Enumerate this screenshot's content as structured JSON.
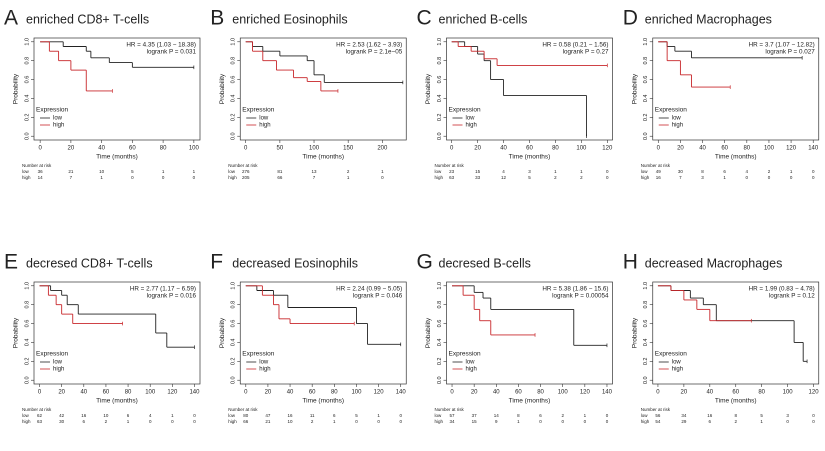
{
  "chart_data": [
    {
      "type": "line",
      "panel": "A",
      "title": "enriched CD8+ T-cells",
      "hr": "HR = 4.35 (1.03 − 18.38)",
      "logrank": "logrank P = 0.031",
      "xlabel": "Time (months)",
      "ylabel": "Probability",
      "legend_title": "Expression",
      "risk_title": "Number at risk",
      "xlim": [
        -4,
        104
      ],
      "xticks": [
        0,
        20,
        40,
        60,
        80,
        100
      ],
      "ylim": [
        -0.04,
        1.04
      ],
      "yticks": [
        {
          "value": 0,
          "label": "0.0"
        },
        {
          "value": 0.2,
          "label": "0.2"
        },
        {
          "value": 0.4,
          "label": "0.4"
        },
        {
          "value": 0.6,
          "label": "0.6"
        },
        {
          "value": 0.8,
          "label": "0.8"
        },
        {
          "value": 1,
          "label": "1.0"
        }
      ],
      "series": [
        {
          "name": "low",
          "color": "#222222",
          "x": [
            0,
            15,
            30,
            33,
            45,
            60,
            100
          ],
          "values": [
            1,
            0.95,
            0.9,
            0.83,
            0.78,
            0.73,
            0.73
          ],
          "at_risk": [
            36,
            21,
            10,
            5,
            1,
            1
          ]
        },
        {
          "name": "high",
          "color": "#c8272b",
          "x": [
            0,
            6,
            12,
            20,
            30,
            47
          ],
          "values": [
            1,
            0.9,
            0.8,
            0.7,
            0.48,
            0.48
          ],
          "at_risk": [
            14,
            7,
            1,
            0,
            0,
            0
          ]
        }
      ]
    },
    {
      "type": "line",
      "panel": "B",
      "title": "enriched Eosinophils",
      "hr": "HR = 2.53 (1.62 − 3.93)",
      "logrank": "logrank P = 2.1e−05",
      "xlabel": "Time (months)",
      "ylabel": "Probability",
      "legend_title": "Expression",
      "risk_title": "Number at risk",
      "xlim": [
        -8,
        235
      ],
      "xticks": [
        0,
        50,
        100,
        150,
        200
      ],
      "ylim": [
        -0.04,
        1.04
      ],
      "yticks": [
        {
          "value": 0,
          "label": "0.0"
        },
        {
          "value": 0.2,
          "label": "0.2"
        },
        {
          "value": 0.4,
          "label": "0.4"
        },
        {
          "value": 0.6,
          "label": "0.6"
        },
        {
          "value": 0.8,
          "label": "0.8"
        },
        {
          "value": 1,
          "label": "1.0"
        }
      ],
      "series": [
        {
          "name": "low",
          "color": "#222222",
          "x": [
            0,
            10,
            25,
            50,
            90,
            100,
            115,
            230
          ],
          "values": [
            1,
            0.95,
            0.9,
            0.85,
            0.8,
            0.65,
            0.57,
            0.57
          ],
          "at_risk": [
            276,
            81,
            13,
            2,
            1
          ]
        },
        {
          "name": "high",
          "color": "#c8272b",
          "x": [
            0,
            10,
            25,
            45,
            70,
            90,
            110,
            135
          ],
          "values": [
            1,
            0.9,
            0.8,
            0.7,
            0.62,
            0.58,
            0.48,
            0.48
          ],
          "at_risk": [
            205,
            66,
            7,
            1,
            0
          ]
        }
      ]
    },
    {
      "type": "line",
      "panel": "C",
      "title": "enriched B-cells",
      "hr": "HR = 0.58 (0.21 − 1.56)",
      "logrank": "logrank P = 0.27",
      "xlabel": "Time (months)",
      "ylabel": "Probability",
      "legend_title": "Expression",
      "risk_title": "Number at risk",
      "xlim": [
        -4,
        124
      ],
      "xticks": [
        0,
        20,
        40,
        60,
        80,
        100,
        120
      ],
      "ylim": [
        -0.04,
        1.04
      ],
      "yticks": [
        {
          "value": 0,
          "label": "0.0"
        },
        {
          "value": 0.2,
          "label": "0.2"
        },
        {
          "value": 0.4,
          "label": "0.4"
        },
        {
          "value": 0.6,
          "label": "0.6"
        },
        {
          "value": 0.8,
          "label": "0.8"
        },
        {
          "value": 1,
          "label": "1.0"
        }
      ],
      "series": [
        {
          "name": "low",
          "color": "#222222",
          "x": [
            0,
            10,
            20,
            25,
            30,
            40,
            104
          ],
          "values": [
            1,
            0.95,
            0.87,
            0.8,
            0.6,
            0.43,
            0
          ],
          "at_risk": [
            23,
            15,
            4,
            3,
            1,
            1,
            0
          ]
        },
        {
          "name": "high",
          "color": "#c8272b",
          "x": [
            0,
            5,
            15,
            25,
            35,
            120
          ],
          "values": [
            1,
            0.95,
            0.9,
            0.82,
            0.75,
            0.75
          ],
          "at_risk": [
            63,
            33,
            12,
            5,
            2,
            2,
            0
          ]
        }
      ]
    },
    {
      "type": "line",
      "panel": "D",
      "title": "enriched Macrophages",
      "hr": "HR = 3.7 (1.07 − 12.82)",
      "logrank": "logrank P = 0.027",
      "xlabel": "Time (months)",
      "ylabel": "Probability",
      "legend_title": "Expression",
      "risk_title": "Number at risk",
      "xlim": [
        -5,
        145
      ],
      "xticks": [
        0,
        20,
        40,
        60,
        80,
        100,
        120,
        140
      ],
      "ylim": [
        -0.04,
        1.04
      ],
      "yticks": [
        {
          "value": 0,
          "label": "0.0"
        },
        {
          "value": 0.2,
          "label": "0.2"
        },
        {
          "value": 0.4,
          "label": "0.4"
        },
        {
          "value": 0.6,
          "label": "0.6"
        },
        {
          "value": 0.8,
          "label": "0.8"
        },
        {
          "value": 1,
          "label": "1.0"
        }
      ],
      "series": [
        {
          "name": "low",
          "color": "#222222",
          "x": [
            0,
            8,
            15,
            30,
            130
          ],
          "values": [
            1,
            0.95,
            0.9,
            0.83,
            0.83
          ],
          "at_risk": [
            49,
            30,
            8,
            6,
            4,
            2,
            1,
            0
          ]
        },
        {
          "name": "high",
          "color": "#c8272b",
          "x": [
            0,
            8,
            20,
            30,
            65
          ],
          "values": [
            1,
            0.8,
            0.65,
            0.52,
            0.52
          ],
          "at_risk": [
            16,
            7,
            3,
            1,
            0,
            0,
            0,
            0
          ]
        }
      ]
    },
    {
      "type": "line",
      "panel": "E",
      "title": "decresed CD8+ T-cells",
      "hr": "HR = 2.77 (1.17 − 6.59)",
      "logrank": "logrank P = 0.016",
      "xlabel": "Time (months)",
      "ylabel": "Probability",
      "legend_title": "Expression",
      "risk_title": "Number at risk",
      "xlim": [
        -5,
        145
      ],
      "xticks": [
        0,
        20,
        40,
        60,
        80,
        100,
        120,
        140
      ],
      "ylim": [
        -0.04,
        1.04
      ],
      "yticks": [
        {
          "value": 0,
          "label": "0.0"
        },
        {
          "value": 0.2,
          "label": "0.2"
        },
        {
          "value": 0.4,
          "label": "0.4"
        },
        {
          "value": 0.6,
          "label": "0.6"
        },
        {
          "value": 0.8,
          "label": "0.8"
        },
        {
          "value": 1,
          "label": "1.0"
        }
      ],
      "series": [
        {
          "name": "low",
          "color": "#222222",
          "x": [
            0,
            10,
            20,
            25,
            35,
            105,
            115,
            140
          ],
          "values": [
            1,
            0.95,
            0.9,
            0.8,
            0.7,
            0.5,
            0.35,
            0.35
          ],
          "at_risk": [
            62,
            42,
            16,
            10,
            6,
            4,
            1,
            0
          ]
        },
        {
          "name": "high",
          "color": "#c8272b",
          "x": [
            0,
            8,
            15,
            20,
            30,
            75
          ],
          "values": [
            1,
            0.9,
            0.8,
            0.7,
            0.6,
            0.6
          ],
          "at_risk": [
            63,
            30,
            6,
            2,
            1,
            0,
            0,
            0
          ]
        }
      ]
    },
    {
      "type": "line",
      "panel": "F",
      "title": "decreased Eosinophils",
      "hr": "HR = 2.24 (0.99 − 5.05)",
      "logrank": "logrank P = 0.046",
      "xlabel": "Time (months)",
      "ylabel": "Probability",
      "legend_title": "Expression",
      "risk_title": "Number at risk",
      "xlim": [
        -5,
        145
      ],
      "xticks": [
        0,
        20,
        40,
        60,
        80,
        100,
        120,
        140
      ],
      "ylim": [
        -0.04,
        1.04
      ],
      "yticks": [
        {
          "value": 0,
          "label": "0.0"
        },
        {
          "value": 0.2,
          "label": "0.2"
        },
        {
          "value": 0.4,
          "label": "0.4"
        },
        {
          "value": 0.6,
          "label": "0.6"
        },
        {
          "value": 0.8,
          "label": "0.8"
        },
        {
          "value": 1,
          "label": "1.0"
        }
      ],
      "series": [
        {
          "name": "low",
          "color": "#222222",
          "x": [
            0,
            10,
            25,
            38,
            100,
            110,
            140
          ],
          "values": [
            1,
            0.95,
            0.9,
            0.77,
            0.6,
            0.38,
            0.38
          ],
          "at_risk": [
            80,
            47,
            16,
            11,
            6,
            5,
            1,
            0
          ]
        },
        {
          "name": "high",
          "color": "#c8272b",
          "x": [
            0,
            15,
            25,
            30,
            40,
            98
          ],
          "values": [
            1,
            0.9,
            0.8,
            0.65,
            0.6,
            0.6
          ],
          "at_risk": [
            66,
            21,
            10,
            2,
            1,
            0,
            0,
            0
          ]
        }
      ]
    },
    {
      "type": "line",
      "panel": "G",
      "title": "decresed B-cells",
      "hr": "HR = 5.38 (1.86 − 15.6)",
      "logrank": "logrank P = 0.00054",
      "xlabel": "Time (months)",
      "ylabel": "Probability",
      "legend_title": "Expression",
      "risk_title": "Number at risk",
      "xlim": [
        -5,
        145
      ],
      "xticks": [
        0,
        20,
        40,
        60,
        80,
        100,
        120,
        140
      ],
      "ylim": [
        -0.04,
        1.04
      ],
      "yticks": [
        {
          "value": 0,
          "label": "0.0"
        },
        {
          "value": 0.2,
          "label": "0.2"
        },
        {
          "value": 0.4,
          "label": "0.4"
        },
        {
          "value": 0.6,
          "label": "0.6"
        },
        {
          "value": 0.8,
          "label": "0.8"
        },
        {
          "value": 1,
          "label": "1.0"
        }
      ],
      "series": [
        {
          "name": "low",
          "color": "#222222",
          "x": [
            0,
            20,
            28,
            35,
            110,
            140
          ],
          "values": [
            1,
            0.93,
            0.87,
            0.75,
            0.37,
            0.37
          ],
          "at_risk": [
            57,
            37,
            14,
            8,
            6,
            2,
            1,
            0
          ]
        },
        {
          "name": "high",
          "color": "#c8272b",
          "x": [
            0,
            10,
            20,
            25,
            35,
            75
          ],
          "values": [
            1,
            0.9,
            0.75,
            0.63,
            0.48,
            0.48
          ],
          "at_risk": [
            34,
            15,
            9,
            1,
            0,
            0,
            0,
            0
          ]
        }
      ]
    },
    {
      "type": "line",
      "panel": "H",
      "title": "decreased Macrophages",
      "hr": "HR = 1.99 (0.83 − 4.78)",
      "logrank": "logrank P = 0.12",
      "xlabel": "Time (months)",
      "ylabel": "Probability",
      "legend_title": "Expression",
      "risk_title": "Number at risk",
      "xlim": [
        -4,
        124
      ],
      "xticks": [
        0,
        20,
        40,
        60,
        80,
        100,
        120
      ],
      "ylim": [
        -0.04,
        1.04
      ],
      "yticks": [
        {
          "value": 0,
          "label": "0.0"
        },
        {
          "value": 0.2,
          "label": "0.2"
        },
        {
          "value": 0.4,
          "label": "0.4"
        },
        {
          "value": 0.6,
          "label": "0.6"
        },
        {
          "value": 0.8,
          "label": "0.8"
        },
        {
          "value": 1,
          "label": "1.0"
        }
      ],
      "series": [
        {
          "name": "low",
          "color": "#222222",
          "x": [
            0,
            10,
            25,
            35,
            45,
            105,
            112,
            115
          ],
          "values": [
            1,
            0.95,
            0.87,
            0.8,
            0.63,
            0.4,
            0.2,
            0.2
          ],
          "at_risk": [
            56,
            34,
            16,
            8,
            5,
            3,
            0
          ]
        },
        {
          "name": "high",
          "color": "#c8272b",
          "x": [
            0,
            10,
            20,
            30,
            40,
            72
          ],
          "values": [
            1,
            0.95,
            0.85,
            0.75,
            0.63,
            0.63
          ],
          "at_risk": [
            54,
            29,
            6,
            2,
            1,
            0,
            0
          ]
        }
      ]
    }
  ]
}
